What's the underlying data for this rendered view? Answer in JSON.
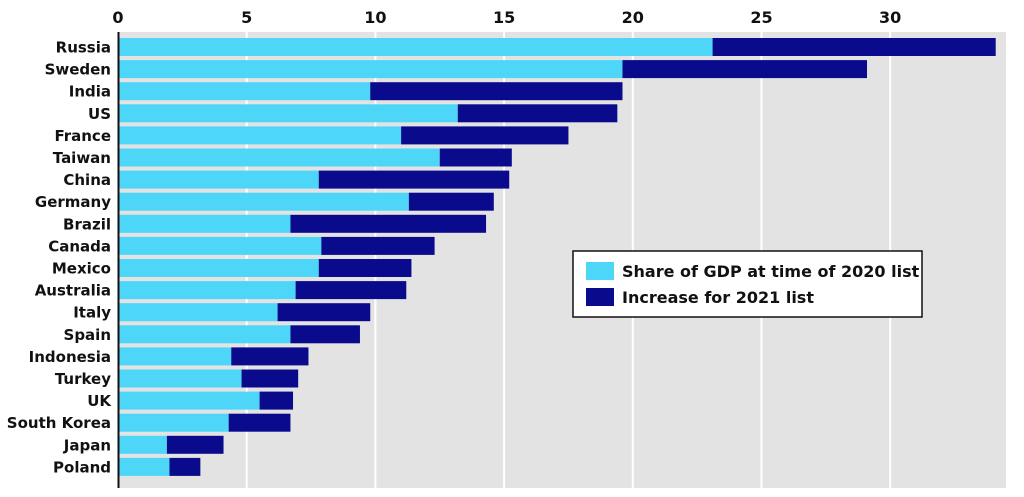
{
  "chart_data": {
    "type": "bar",
    "orientation": "horizontal",
    "stacked": true,
    "categories": [
      "Russia",
      "Sweden",
      "India",
      "US",
      "France",
      "Taiwan",
      "China",
      "Germany",
      "Brazil",
      "Canada",
      "Mexico",
      "Australia",
      "Italy",
      "Spain",
      "Indonesia",
      "Turkey",
      "UK",
      "South Korea",
      "Japan",
      "Poland"
    ],
    "series": [
      {
        "name": "Share of GDP at time of 2020 list",
        "color": "#4dd6f8",
        "values": [
          23.1,
          19.6,
          9.8,
          13.2,
          11.0,
          12.5,
          7.8,
          11.3,
          6.7,
          7.9,
          7.8,
          6.9,
          6.2,
          6.7,
          4.4,
          4.8,
          5.5,
          4.3,
          1.9,
          2.0
        ]
      },
      {
        "name": "Increase for 2021 list",
        "color": "#0a0a8c",
        "values": [
          11.0,
          9.5,
          9.8,
          6.2,
          6.5,
          2.8,
          7.4,
          3.3,
          7.6,
          4.4,
          3.6,
          4.3,
          3.6,
          2.7,
          3.0,
          2.2,
          1.3,
          2.4,
          2.2,
          1.2
        ]
      }
    ],
    "xlim": [
      0,
      34.5
    ],
    "xticks": [
      "0",
      "5",
      "10",
      "15",
      "20",
      "25",
      "30"
    ],
    "x_axis_position": "top",
    "grid": true,
    "plot_background": "#e3e3e3",
    "legend_position": "center-right",
    "title": "",
    "xlabel": "",
    "ylabel": ""
  }
}
